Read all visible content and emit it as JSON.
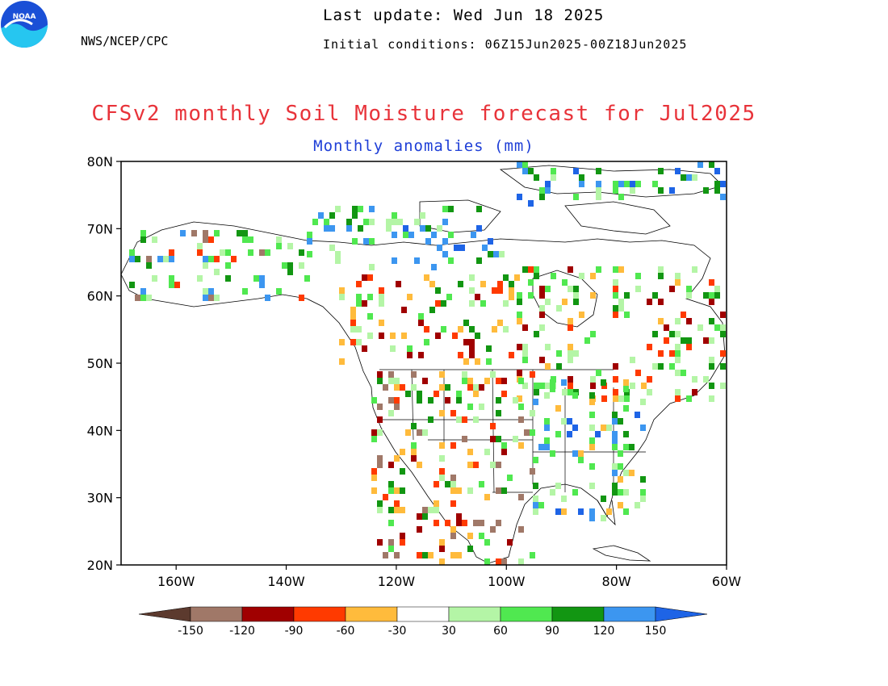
{
  "header": {
    "agency": "NWS/NCEP/CPC",
    "last_update": "Last update: Wed Jun 18 2025",
    "initial_conditions": "Initial conditions: 06Z15Jun2025-00Z18Jun2025",
    "logo_text": "NOAA"
  },
  "titles": {
    "main": "CFSv2 monthly Soil Moisture forecast for Jul2025",
    "sub": "Monthly anomalies (mm)"
  },
  "map": {
    "lon_range": [
      -170,
      -60
    ],
    "lat_range": [
      20,
      80
    ],
    "lat_ticks": [
      "20N",
      "30N",
      "40N",
      "50N",
      "60N",
      "70N",
      "80N"
    ],
    "lon_ticks": [
      "160W",
      "140W",
      "120W",
      "100W",
      "80W",
      "60W"
    ]
  },
  "colorbar": {
    "labels": [
      "-150",
      "-120",
      "-90",
      "-60",
      "-30",
      "30",
      "60",
      "90",
      "120",
      "150"
    ],
    "colors": [
      "#5c3a2e",
      "#a07868",
      "#a00000",
      "#ff3a00",
      "#ffbb3c",
      "#ffffff",
      "#b4f5a6",
      "#50e850",
      "#129612",
      "#3c96f0",
      "#1e64e6"
    ]
  }
}
